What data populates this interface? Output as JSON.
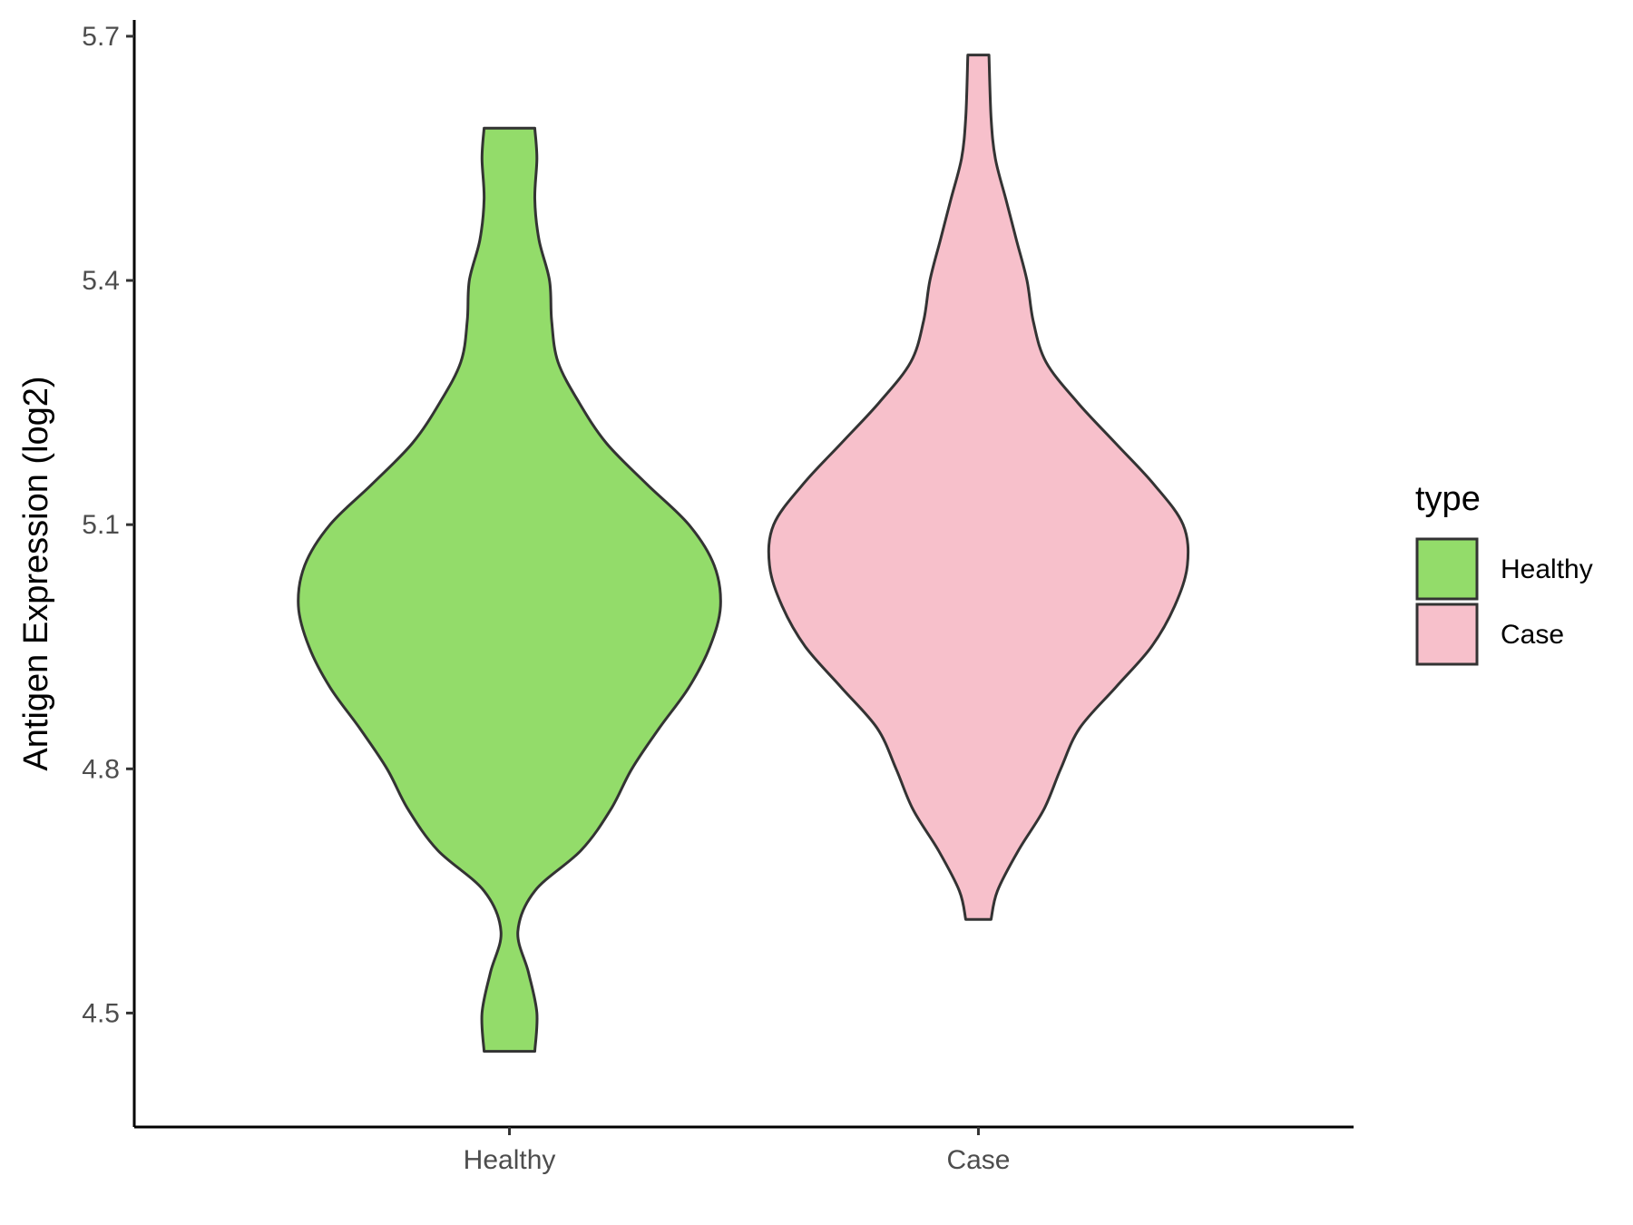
{
  "chart_data": {
    "type": "violin",
    "categories": [
      "Healthy",
      "Case"
    ],
    "ylabel": "Antigen Expression (log2)",
    "xlabel": "",
    "ylim": [
      4.36,
      5.72
    ],
    "yticks": [
      4.5,
      4.8,
      5.1,
      5.4,
      5.7
    ],
    "ytick_labels": [
      "4.5",
      "4.8",
      "5.1",
      "5.4",
      "5.7"
    ],
    "grid": false,
    "legend": {
      "title": "type",
      "placement": "right",
      "entries": [
        {
          "label": "Healthy",
          "color": "#93DC6A"
        },
        {
          "label": "Case",
          "color": "#F7C0CB"
        }
      ]
    },
    "series": [
      {
        "category": "Healthy",
        "color": "#93DC6A",
        "min": 4.453,
        "max": 5.587,
        "density": [
          [
            4.453,
            0.12
          ],
          [
            4.5,
            0.13
          ],
          [
            4.55,
            0.09
          ],
          [
            4.6,
            0.04
          ],
          [
            4.65,
            0.12
          ],
          [
            4.7,
            0.34
          ],
          [
            4.75,
            0.48
          ],
          [
            4.8,
            0.58
          ],
          [
            4.85,
            0.71
          ],
          [
            4.9,
            0.85
          ],
          [
            4.95,
            0.95
          ],
          [
            5.0,
            1.0
          ],
          [
            5.05,
            0.97
          ],
          [
            5.1,
            0.85
          ],
          [
            5.15,
            0.65
          ],
          [
            5.2,
            0.46
          ],
          [
            5.25,
            0.33
          ],
          [
            5.3,
            0.23
          ],
          [
            5.35,
            0.2
          ],
          [
            5.4,
            0.19
          ],
          [
            5.45,
            0.14
          ],
          [
            5.5,
            0.12
          ],
          [
            5.55,
            0.13
          ],
          [
            5.587,
            0.12
          ]
        ]
      },
      {
        "category": "Case",
        "color": "#F7C0CB",
        "min": 4.615,
        "max": 5.677,
        "density": [
          [
            4.615,
            0.06
          ],
          [
            4.65,
            0.09
          ],
          [
            4.7,
            0.19
          ],
          [
            4.75,
            0.31
          ],
          [
            4.8,
            0.39
          ],
          [
            4.85,
            0.48
          ],
          [
            4.9,
            0.65
          ],
          [
            4.95,
            0.82
          ],
          [
            5.0,
            0.93
          ],
          [
            5.05,
            0.99
          ],
          [
            5.1,
            0.97
          ],
          [
            5.15,
            0.83
          ],
          [
            5.2,
            0.65
          ],
          [
            5.25,
            0.47
          ],
          [
            5.3,
            0.32
          ],
          [
            5.35,
            0.26
          ],
          [
            5.4,
            0.23
          ],
          [
            5.45,
            0.18
          ],
          [
            5.5,
            0.13
          ],
          [
            5.55,
            0.08
          ],
          [
            5.6,
            0.06
          ],
          [
            5.677,
            0.05
          ]
        ]
      }
    ]
  }
}
